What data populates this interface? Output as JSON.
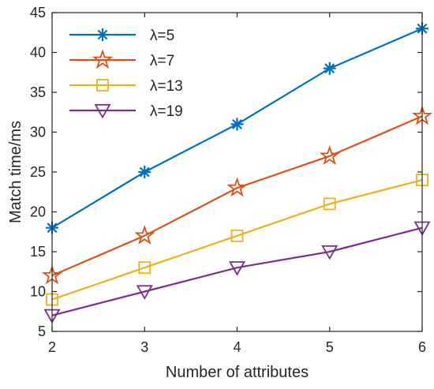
{
  "chart_data": {
    "type": "line",
    "title": "",
    "xlabel": "Number of attributes",
    "ylabel": "Match time/ms",
    "x": [
      2,
      3,
      4,
      5,
      6
    ],
    "xlim": [
      2,
      6
    ],
    "ylim": [
      5,
      45
    ],
    "xticks": [
      2,
      3,
      4,
      5,
      6
    ],
    "yticks": [
      5,
      10,
      15,
      20,
      25,
      30,
      35,
      40,
      45
    ],
    "grid": false,
    "legend_position": "top-left",
    "series": [
      {
        "name": "λ=5",
        "values": [
          18,
          25,
          31,
          38,
          43
        ],
        "color": "#0072BD",
        "marker": "asterisk"
      },
      {
        "name": "λ=7",
        "values": [
          12,
          17,
          23,
          27,
          32
        ],
        "color": "#D95319",
        "marker": "star"
      },
      {
        "name": "λ=13",
        "values": [
          9,
          13,
          17,
          21,
          24
        ],
        "color": "#EDB120",
        "marker": "square"
      },
      {
        "name": "λ=19",
        "values": [
          7,
          10,
          13,
          15,
          18
        ],
        "color": "#7E2F8E",
        "marker": "triangle-down"
      }
    ]
  }
}
